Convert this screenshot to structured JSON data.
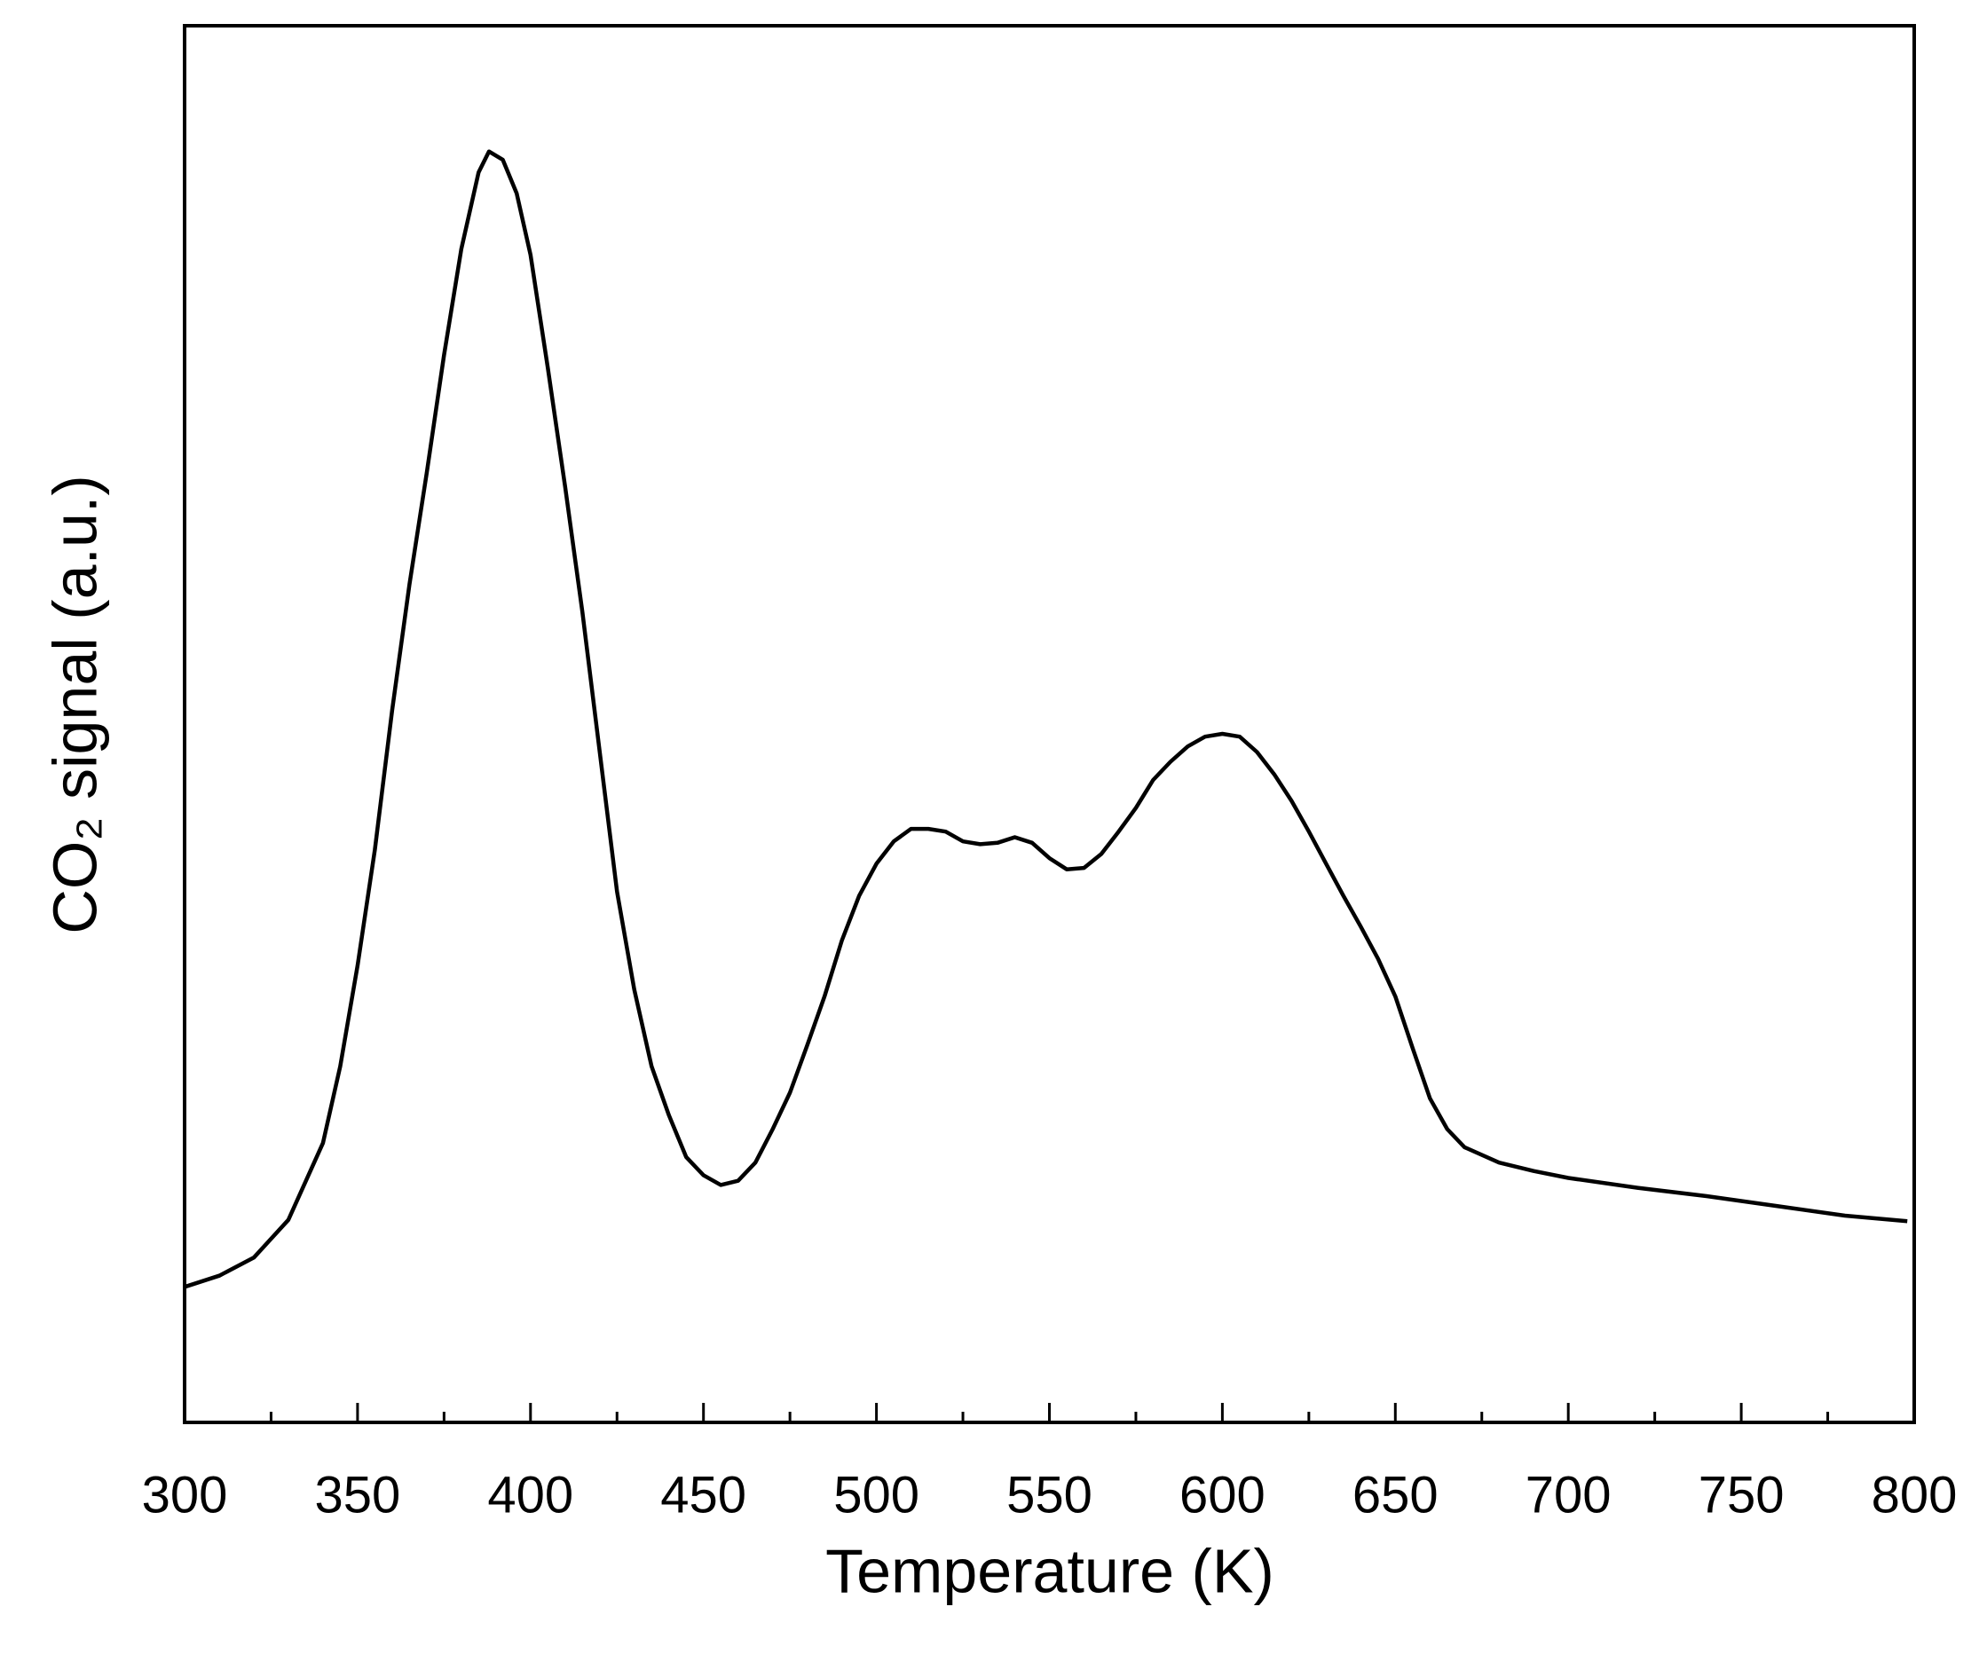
{
  "chart_data": {
    "type": "line",
    "x_label": "Temperature (K)",
    "y_label": "CO₂ signal (a.u.)",
    "xlim": [
      300,
      800
    ],
    "xticks": [
      300,
      350,
      400,
      450,
      500,
      550,
      600,
      650,
      700,
      750,
      800
    ],
    "ylim": [
      0,
      100
    ],
    "grid": false,
    "series": [
      {
        "color": "#000000",
        "x": [
          300,
          310,
          320,
          330,
          340,
          345,
          350,
          355,
          360,
          365,
          370,
          375,
          380,
          385,
          388,
          392,
          396,
          400,
          405,
          410,
          415,
          420,
          425,
          430,
          435,
          440,
          445,
          450,
          455,
          460,
          465,
          470,
          475,
          480,
          485,
          490,
          495,
          500,
          505,
          510,
          515,
          520,
          525,
          530,
          535,
          540,
          545,
          550,
          555,
          560,
          565,
          570,
          575,
          580,
          585,
          590,
          595,
          600,
          605,
          610,
          615,
          620,
          625,
          630,
          635,
          640,
          645,
          650,
          655,
          660,
          665,
          670,
          680,
          690,
          700,
          720,
          740,
          760,
          780,
          798
        ],
        "values": [
          9.7,
          10.5,
          11.8,
          14.5,
          20,
          25.5,
          32.7,
          41,
          51,
          60,
          68,
          76.4,
          84,
          89.5,
          91,
          90.4,
          88,
          83.6,
          75.5,
          67,
          58,
          48,
          38,
          31,
          25.5,
          22,
          19,
          17.7,
          17,
          17.3,
          18.6,
          21,
          23.6,
          27,
          30.5,
          34.5,
          37.7,
          40,
          41.6,
          42.5,
          42.5,
          42.3,
          41.6,
          41.4,
          41.5,
          41.9,
          41.5,
          40.4,
          39.6,
          39.7,
          40.7,
          42.3,
          44,
          46,
          47.3,
          48.4,
          49.1,
          49.3,
          49.1,
          48,
          46.4,
          44.5,
          42.3,
          40,
          37.7,
          35.5,
          33.2,
          30.5,
          26.8,
          23.2,
          21,
          19.7,
          18.6,
          18,
          17.5,
          16.8,
          16.2,
          15.5,
          14.8,
          14.4
        ]
      }
    ]
  }
}
